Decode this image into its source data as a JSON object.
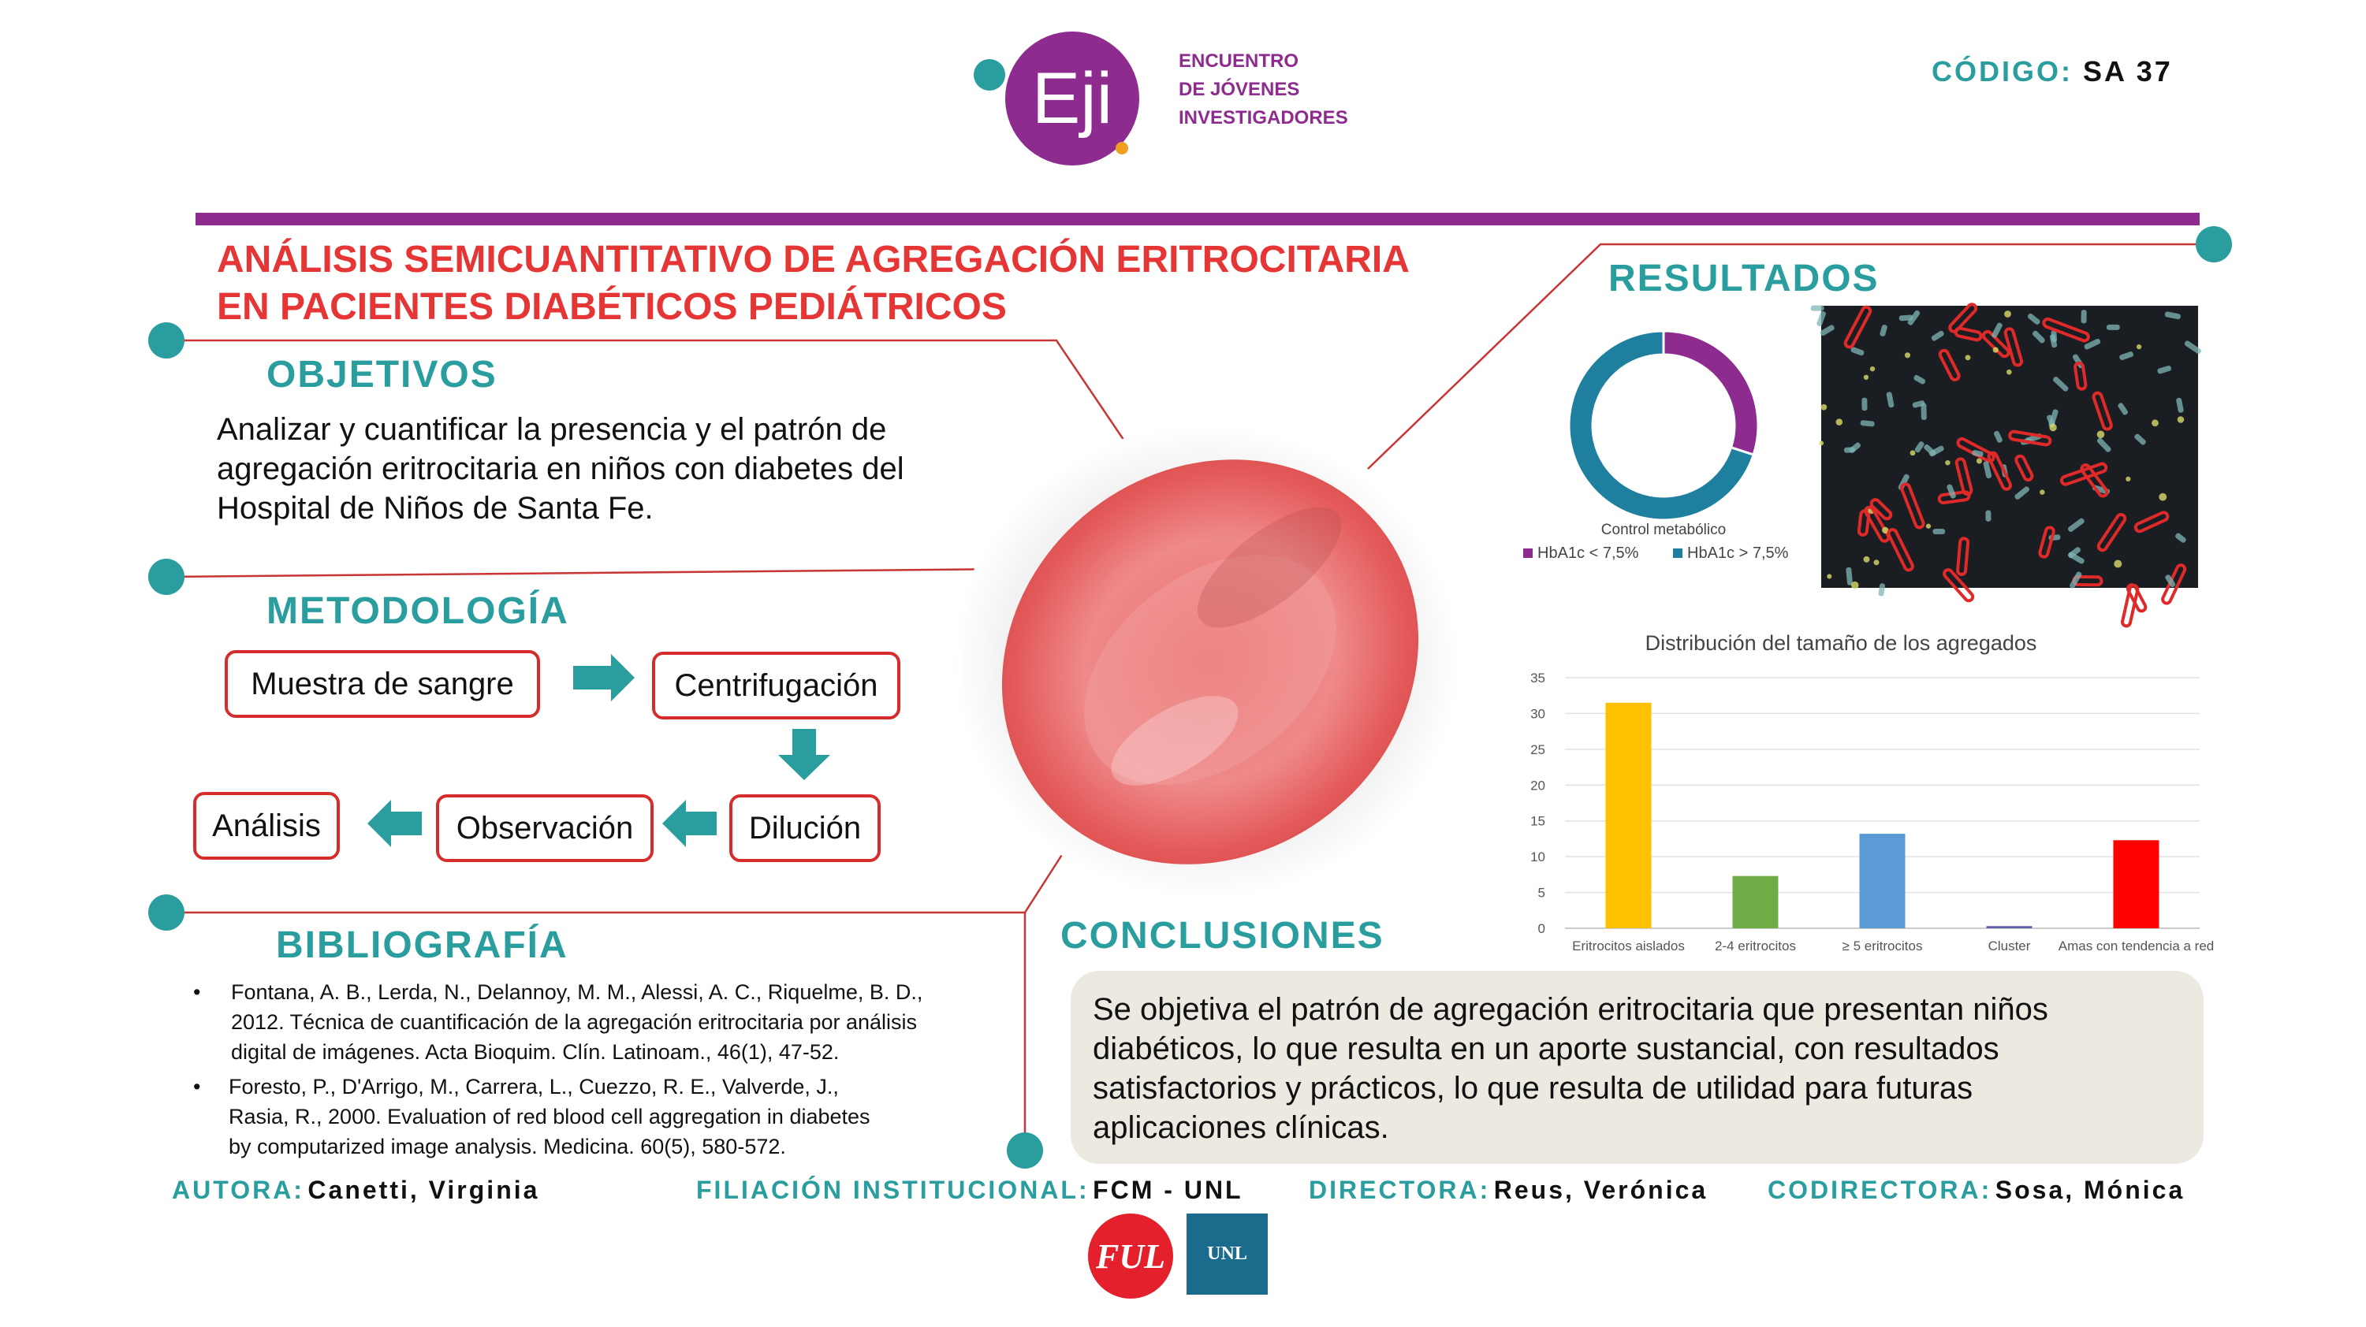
{
  "logo": {
    "mark": "Eji",
    "text_lines": [
      "ENCUENTRO",
      "DE JÓVENES",
      "INVESTIGADORES"
    ]
  },
  "code": {
    "label": "CÓDIGO:",
    "value": "SA 37"
  },
  "title_lines": [
    "ANÁLISIS SEMICUANTITATIVO DE AGREGACIÓN ERITROCITARIA",
    "EN PACIENTES DIABÉTICOS PEDIÁTRICOS"
  ],
  "objetivos": {
    "heading": "OBJETIVOS",
    "lines": [
      "Analizar y cuantificar la presencia y el patrón de",
      "agregación eritrocitaria en niños con diabetes del",
      "Hospital de Niños de Santa Fe."
    ]
  },
  "metodologia": {
    "heading": "METODOLOGÍA",
    "steps": {
      "muestra": "Muestra de sangre",
      "centrifugacion": "Centrifugación",
      "dilucion": "Dilución",
      "observacion": "Observación",
      "analisis": "Análisis"
    }
  },
  "bibliografia": {
    "heading": "BIBLIOGRAFÍA",
    "entries": [
      {
        "bullet": "•",
        "lines": [
          "Fontana, A. B., Lerda, N., Delannoy, M. M., Alessi, A. C., Riquelme, B. D.,",
          "2012. Técnica de cuantificación de la agregación eritrocitaria por análisis",
          "digital de imágenes. Acta Bioquim. Clín. Latinoam., 46(1), 47-52."
        ]
      },
      {
        "bullet": "•",
        "lines": [
          "Foresto, P., D'Arrigo, M., Carrera, L., Cuezzo, R. E., Valverde, J.,",
          "Rasia, R., 2000. Evaluation of red blood cell aggregation in diabetes",
          "by computarized image analysis. Medicina. 60(5), 580-572."
        ]
      }
    ]
  },
  "resultados": {
    "heading": "RESULTADOS"
  },
  "conclusiones": {
    "heading": "CONCLUSIONES",
    "lines": [
      "Se objetiva el patrón de agregación eritrocitaria que presentan niños",
      "diabéticos, lo que resulta en un aporte sustancial, con resultados",
      "satisfactorios y prácticos, lo que resulta de utilidad para futuras",
      "aplicaciones clínicas."
    ]
  },
  "footer": {
    "autora_label": "AUTORA:",
    "autora": "Canetti, Virginia",
    "filiacion_label": "FILIACIÓN INSTITUCIONAL:",
    "filiacion": "FCM - UNL",
    "directora_label": "DIRECTORA:",
    "directora": "Reus, Verónica",
    "codirectora_label": "CODIRECTORA:",
    "codirectora": "Sosa, Mónica"
  },
  "logos_bottom": {
    "ful": "FUL",
    "unl": "UNL"
  },
  "colors": {
    "teal": "#2a9d9f",
    "purple": "#8e2b8e",
    "red": "#e53535",
    "donut_purple": "#8e2b8e",
    "donut_blue": "#1f7f9f"
  },
  "chart_data": [
    {
      "type": "pie",
      "title": "Control metabólico",
      "series": [
        {
          "name": "HbA1c < 7,5%",
          "value": 30,
          "color": "#8e2b8e"
        },
        {
          "name": "HbA1c > 7,5%",
          "value": 70,
          "color": "#1f7f9f"
        }
      ],
      "legend": "bottom"
    },
    {
      "type": "bar",
      "title": "Distribución del tamaño de los agregados",
      "categories": [
        "Eritrocitos aislados",
        "2-4 eritrocitos",
        "≥ 5 eritrocitos",
        "Cluster",
        "Amas con tendencia a red"
      ],
      "values": [
        31.5,
        7.3,
        13.2,
        0.3,
        12.3
      ],
      "colors": [
        "#ffc000",
        "#70ad47",
        "#5b9bd5",
        "#5b5ea6",
        "#ff0000"
      ],
      "ylim": [
        0,
        35
      ],
      "yticks": [
        "0",
        "5",
        "10",
        "15",
        "20",
        "25",
        "30",
        "35"
      ],
      "grid": true,
      "xlabel": "",
      "ylabel": ""
    }
  ]
}
